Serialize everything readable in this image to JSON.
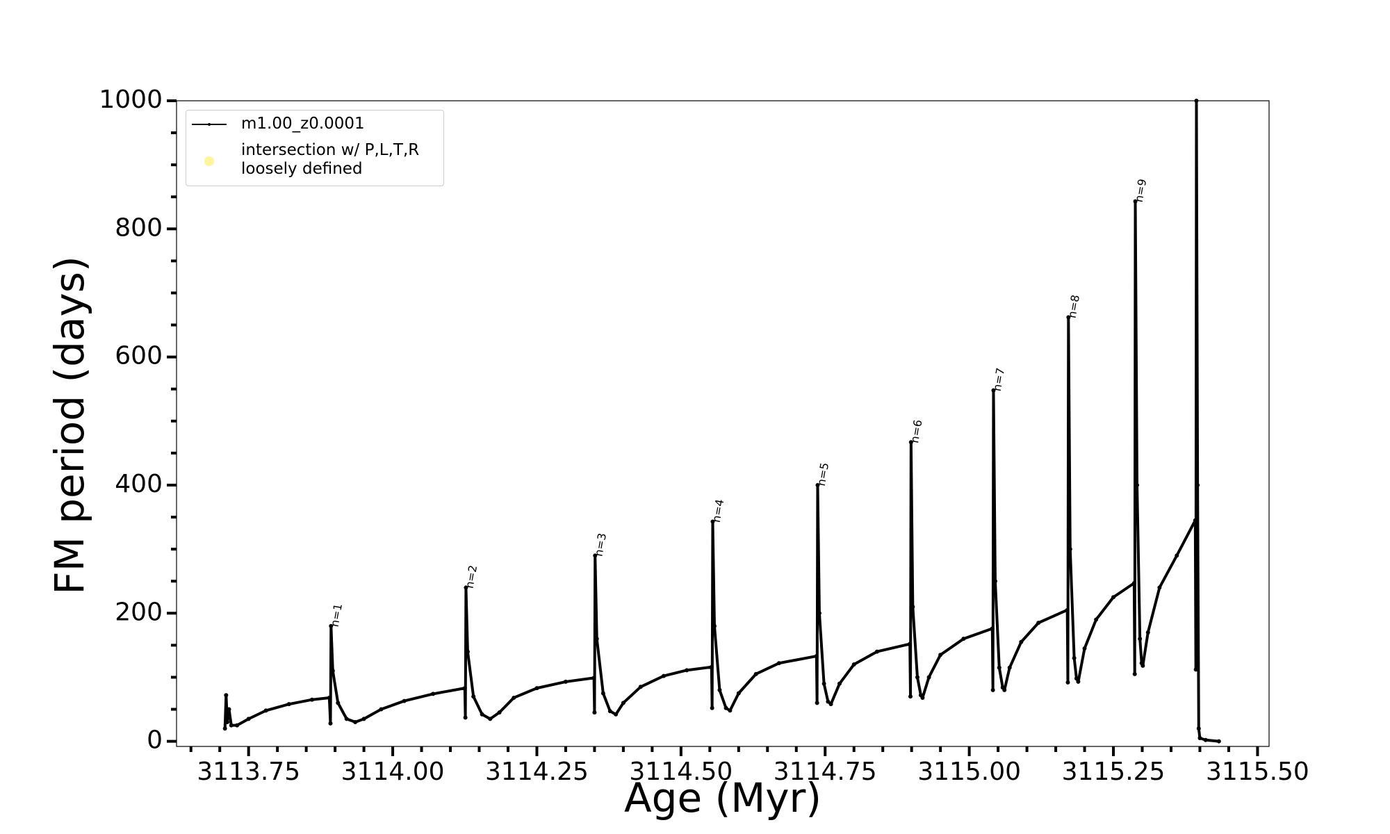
{
  "chart_data": {
    "type": "line",
    "xlabel": "Age (Myr)",
    "ylabel": "FM period (days)",
    "xlim": [
      3113.625,
      3115.52
    ],
    "ylim": [
      -8,
      1000
    ],
    "xticks": [
      {
        "value": 3113.75,
        "label": "3113.75"
      },
      {
        "value": 3114.0,
        "label": "3114.00"
      },
      {
        "value": 3114.25,
        "label": "3114.25"
      },
      {
        "value": 3114.5,
        "label": "3114.50"
      },
      {
        "value": 3114.75,
        "label": "3114.75"
      },
      {
        "value": 3115.0,
        "label": "3115.00"
      },
      {
        "value": 3115.25,
        "label": "3115.25"
      },
      {
        "value": 3115.5,
        "label": "3115.50"
      }
    ],
    "xminorticks": [
      3113.65,
      3113.7,
      3113.8,
      3113.85,
      3113.9,
      3113.95,
      3114.05,
      3114.1,
      3114.15,
      3114.2,
      3114.3,
      3114.35,
      3114.4,
      3114.45,
      3114.55,
      3114.6,
      3114.65,
      3114.7,
      3114.8,
      3114.85,
      3114.9,
      3114.95,
      3115.05,
      3115.1,
      3115.15,
      3115.2,
      3115.3,
      3115.35,
      3115.4,
      3115.45
    ],
    "yticks": [
      0,
      200,
      400,
      600,
      800,
      1000
    ],
    "yminorticks": [
      50,
      100,
      150,
      250,
      300,
      350,
      450,
      500,
      550,
      650,
      700,
      750,
      850,
      900,
      950
    ],
    "legend": "upper left",
    "series": [
      {
        "name": "m1.00_z0.0001",
        "color": "#000000",
        "x": [
          3113.709,
          3113.711,
          3113.713,
          3113.716,
          3113.72,
          3113.73,
          3113.75,
          3113.78,
          3113.82,
          3113.86,
          3113.89,
          3113.892,
          3113.893,
          3113.896,
          3113.905,
          3113.92,
          3113.935,
          3113.95,
          3113.98,
          3114.02,
          3114.07,
          3114.125,
          3114.126,
          3114.127,
          3114.13,
          3114.14,
          3114.155,
          3114.169,
          3114.185,
          3114.21,
          3114.25,
          3114.3,
          3114.349,
          3114.35,
          3114.351,
          3114.354,
          3114.365,
          3114.377,
          3114.387,
          3114.4,
          3114.43,
          3114.47,
          3114.51,
          3114.553,
          3114.554,
          3114.555,
          3114.558,
          3114.567,
          3114.578,
          3114.585,
          3114.6,
          3114.63,
          3114.67,
          3114.735,
          3114.736,
          3114.737,
          3114.74,
          3114.748,
          3114.755,
          3114.76,
          3114.775,
          3114.8,
          3114.84,
          3114.897,
          3114.898,
          3114.899,
          3114.902,
          3114.91,
          3114.916,
          3114.919,
          3114.93,
          3114.95,
          3114.99,
          3115.04,
          3115.041,
          3115.042,
          3115.045,
          3115.052,
          3115.058,
          3115.061,
          3115.07,
          3115.09,
          3115.12,
          3115.17,
          3115.171,
          3115.172,
          3115.175,
          3115.182,
          3115.186,
          3115.189,
          3115.2,
          3115.22,
          3115.25,
          3115.286,
          3115.287,
          3115.288,
          3115.291,
          3115.296,
          3115.299,
          3115.301,
          3115.31,
          3115.33,
          3115.36,
          3115.392,
          3115.393,
          3115.394,
          3115.396,
          3115.398,
          3115.4,
          3115.41,
          3115.433
        ],
        "values": [
          20,
          72,
          30,
          50,
          25,
          25,
          35,
          48,
          58,
          65,
          68,
          28,
          180,
          110,
          60,
          35,
          30,
          35,
          50,
          63,
          74,
          83,
          37,
          240,
          140,
          70,
          42,
          35,
          45,
          68,
          83,
          93,
          99,
          45,
          290,
          160,
          75,
          47,
          42,
          60,
          85,
          102,
          111,
          116,
          52,
          343,
          180,
          80,
          52,
          48,
          75,
          105,
          122,
          133,
          60,
          400,
          200,
          90,
          62,
          58,
          90,
          120,
          140,
          152,
          70,
          467,
          210,
          100,
          72,
          68,
          100,
          135,
          160,
          176,
          80,
          548,
          250,
          115,
          84,
          80,
          115,
          155,
          185,
          205,
          92,
          662,
          300,
          130,
          98,
          93,
          145,
          190,
          225,
          247,
          105,
          843,
          400,
          160,
          122,
          118,
          170,
          240,
          290,
          345,
          112,
          1000,
          400,
          20,
          5,
          2,
          0
        ]
      },
      {
        "name": "intersection w/ P,L,T,R\nloosely defined",
        "color": "#fff59a",
        "type": "scatter",
        "x": [],
        "values": []
      }
    ],
    "annotations": [
      {
        "text": "n=1",
        "x": 3113.893,
        "y": 180
      },
      {
        "text": "n=2",
        "x": 3114.127,
        "y": 240
      },
      {
        "text": "n=3",
        "x": 3114.351,
        "y": 290
      },
      {
        "text": "n=4",
        "x": 3114.555,
        "y": 343
      },
      {
        "text": "n=5",
        "x": 3114.737,
        "y": 400
      },
      {
        "text": "n=6",
        "x": 3114.899,
        "y": 467
      },
      {
        "text": "n=7",
        "x": 3115.042,
        "y": 548
      },
      {
        "text": "n=8",
        "x": 3115.172,
        "y": 662
      },
      {
        "text": "n=9",
        "x": 3115.288,
        "y": 843
      }
    ]
  }
}
